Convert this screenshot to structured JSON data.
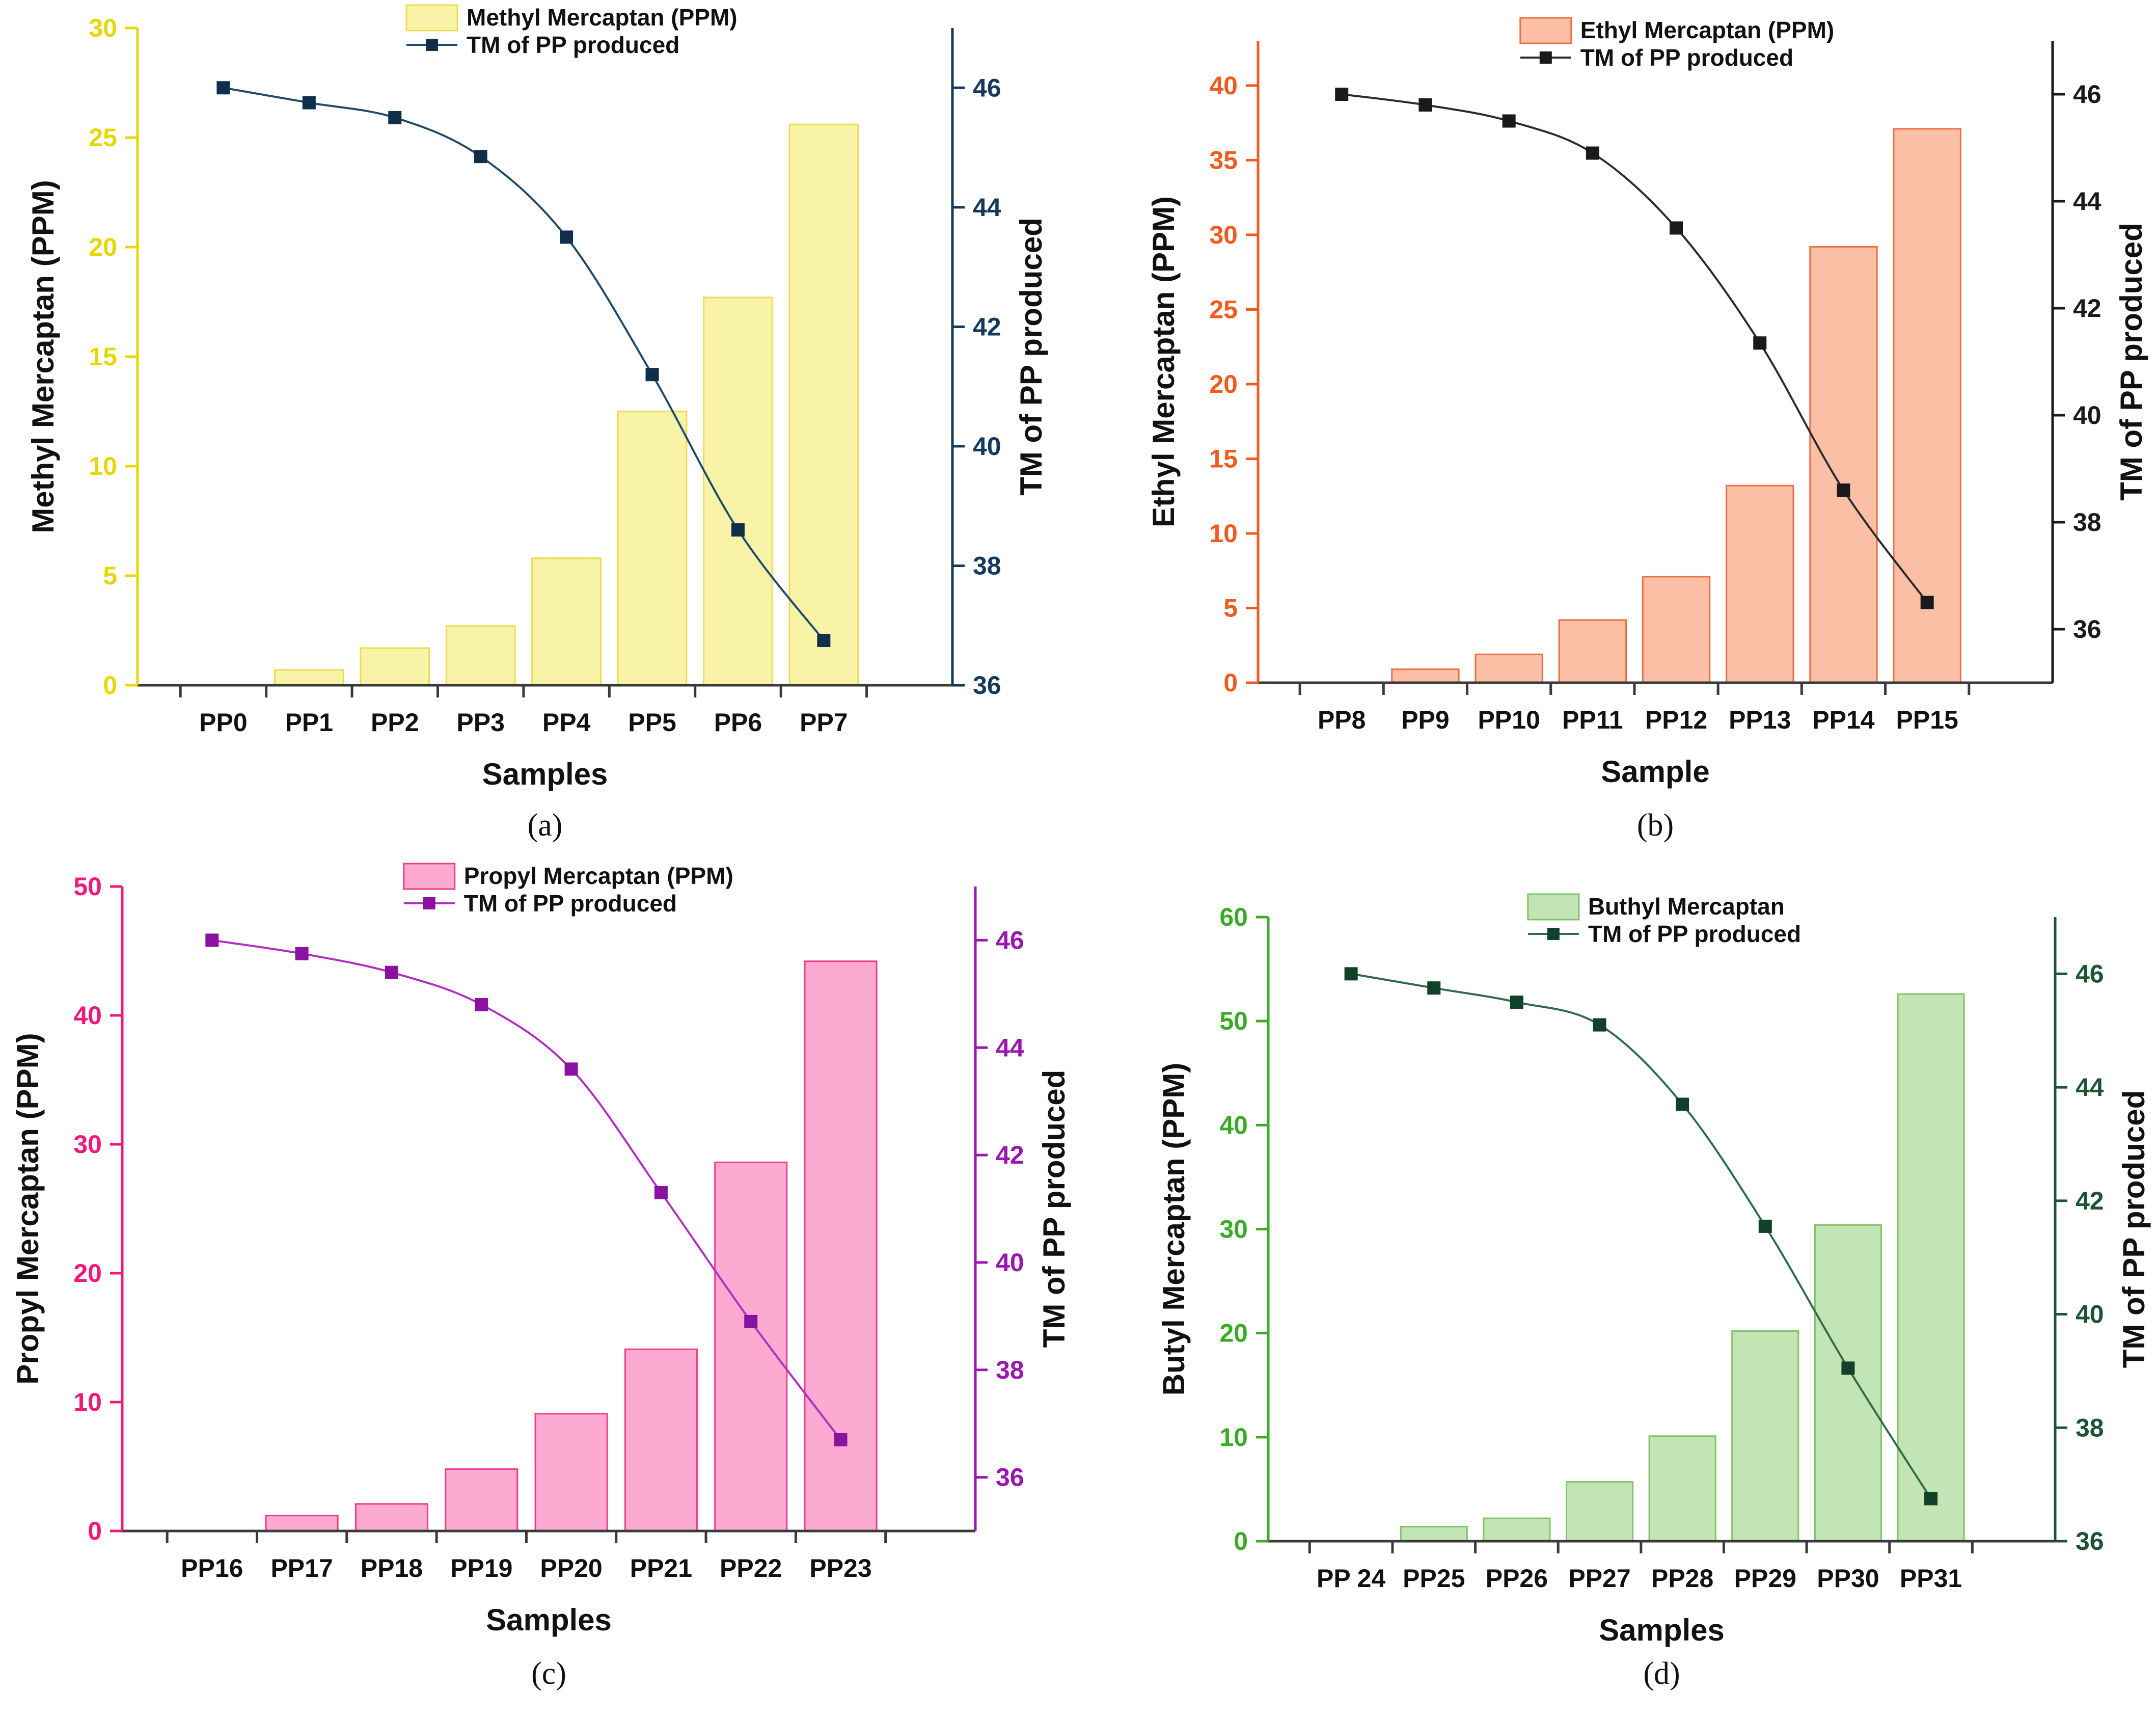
{
  "chart_data": [
    {
      "type": "bar+line",
      "panel_label": "(a)",
      "title": "",
      "xlabel": "Samples",
      "ylabel": "Methyl Mercaptan (PPM)",
      "y2label": "TM of PP produced",
      "categories": [
        "PP0",
        "PP1",
        "PP2",
        "PP3",
        "PP4",
        "PP5",
        "PP6",
        "PP7"
      ],
      "ylim": [
        0,
        30
      ],
      "yticks": [
        0,
        5,
        10,
        15,
        20,
        25,
        30
      ],
      "y2lim": [
        36,
        47
      ],
      "y2ticks": [
        36,
        38,
        40,
        42,
        44,
        46
      ],
      "legend_position": "top-center",
      "series": [
        {
          "name": "Methyl Mercaptan (PPM)",
          "kind": "bar",
          "values": [
            0,
            0.7,
            1.7,
            2.7,
            5.8,
            12.5,
            17.7,
            25.6
          ]
        },
        {
          "name": "TM of PP produced",
          "kind": "line",
          "axis": "right",
          "values": [
            46.0,
            45.75,
            45.5,
            44.85,
            43.5,
            41.2,
            38.6,
            36.75
          ]
        }
      ],
      "colors": {
        "bar_fill": "#f9f3a8",
        "bar_stroke": "#e8de55",
        "line": "#1e4a6b",
        "marker": "#0f2f4a",
        "left_axis": "#e5d800",
        "right_axis": "#14395a"
      }
    },
    {
      "type": "bar+line",
      "panel_label": "(b)",
      "title": "",
      "xlabel": "Sample",
      "ylabel": "Ethyl Mercaptan (PPM)",
      "y2label": "TM of PP produced",
      "categories": [
        "PP8",
        "PP9",
        "PP10",
        "PP11",
        "PP12",
        "PP13",
        "PP14",
        "PP15"
      ],
      "ylim": [
        0,
        43
      ],
      "yticks": [
        0,
        5,
        10,
        15,
        20,
        25,
        30,
        35,
        40
      ],
      "y2lim": [
        35,
        47
      ],
      "y2ticks": [
        36,
        38,
        40,
        42,
        44,
        46
      ],
      "legend_position": "top-center",
      "series": [
        {
          "name": "Ethyl Mercaptan (PPM)",
          "kind": "bar",
          "values": [
            0,
            0.9,
            1.9,
            4.2,
            7.1,
            13.2,
            29.2,
            37.1
          ]
        },
        {
          "name": "TM of PP produced",
          "kind": "line",
          "axis": "right",
          "values": [
            46.0,
            45.8,
            45.5,
            44.9,
            43.5,
            41.35,
            38.6,
            36.5
          ]
        }
      ],
      "colors": {
        "bar_fill": "#fbbfa6",
        "bar_stroke": "#ec6f45",
        "line": "#2a2a2a",
        "marker": "#1a1a1a",
        "left_axis": "#f25b1d",
        "right_axis": "#1a1a1a"
      }
    },
    {
      "type": "bar+line",
      "panel_label": "(c)",
      "title": "",
      "xlabel": "Samples",
      "ylabel": "Propyl Mercaptan (PPM)",
      "y2label": "TM of PP produced",
      "categories": [
        "PP16",
        "PP17",
        "PP18",
        "PP19",
        "PP20",
        "PP21",
        "PP22",
        "PP23"
      ],
      "ylim": [
        0,
        50
      ],
      "yticks": [
        0,
        10,
        20,
        30,
        40,
        50
      ],
      "y2lim": [
        35,
        47
      ],
      "y2ticks": [
        36,
        38,
        40,
        42,
        44,
        46
      ],
      "legend_position": "top-center",
      "series": [
        {
          "name": "Propyl Mercaptan (PPM)",
          "kind": "bar",
          "values": [
            0,
            1.2,
            2.1,
            4.8,
            9.1,
            14.1,
            28.6,
            44.2
          ]
        },
        {
          "name": "TM of PP produced",
          "kind": "line",
          "axis": "right",
          "values": [
            46.0,
            45.75,
            45.4,
            44.8,
            43.6,
            41.3,
            38.9,
            36.7
          ]
        }
      ],
      "colors": {
        "bar_fill": "#fdaad2",
        "bar_stroke": "#ee3c8c",
        "line": "#b02fc0",
        "marker": "#8a12a0",
        "left_axis": "#f0187a",
        "right_axis": "#9a16b0"
      }
    },
    {
      "type": "bar+line",
      "panel_label": "(d)",
      "title": "",
      "xlabel": "Samples",
      "ylabel": "Butyl Mercaptan (PPM)",
      "y2label": "TM of PP produced",
      "categories": [
        "PP 24",
        "PP25",
        "PP26",
        "PP27",
        "PP28",
        "PP29",
        "PP30",
        "PP31"
      ],
      "ylim": [
        0,
        60
      ],
      "yticks": [
        0,
        10,
        20,
        30,
        40,
        50,
        60
      ],
      "y2lim": [
        36,
        47
      ],
      "y2ticks": [
        36,
        38,
        40,
        42,
        44,
        46
      ],
      "legend_position": "top-center",
      "series": [
        {
          "name": "Buthyl Mercaptan",
          "kind": "bar",
          "values": [
            0,
            1.4,
            2.2,
            5.7,
            10.1,
            20.2,
            30.4,
            52.6
          ]
        },
        {
          "name": "TM of PP produced",
          "kind": "line",
          "axis": "right",
          "values": [
            46.0,
            45.75,
            45.5,
            45.1,
            43.7,
            41.55,
            39.05,
            36.75
          ]
        }
      ],
      "colors": {
        "bar_fill": "#c3e4b4",
        "bar_stroke": "#7fc36b",
        "line": "#2e6b4a",
        "marker": "#12412a",
        "left_axis": "#3aab25",
        "right_axis": "#1c5436"
      }
    }
  ]
}
